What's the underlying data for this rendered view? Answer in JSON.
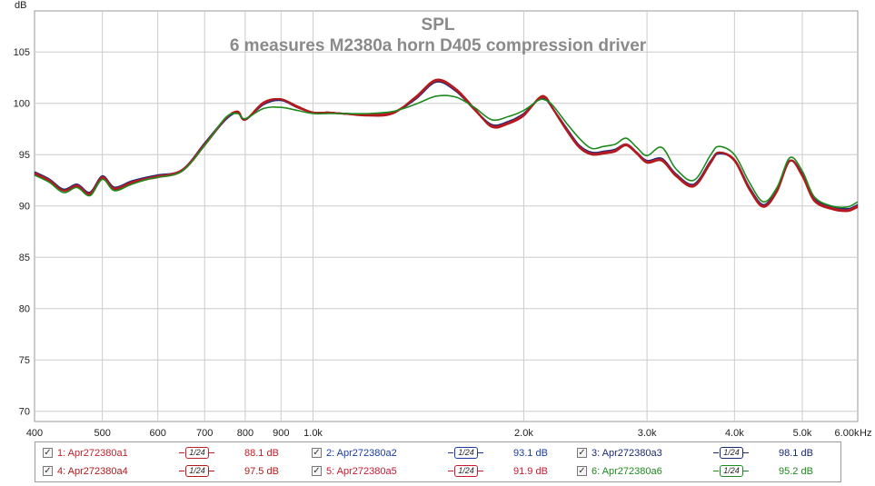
{
  "chart_data": {
    "type": "line",
    "title": "SPL",
    "subtitle": "6 measures M2380a horn D405 compression driver",
    "ylabel": "dB",
    "xunit": "Hz",
    "xscale": "log",
    "xlim": [
      400,
      6000
    ],
    "ylim": [
      69,
      109
    ],
    "grid": true,
    "x_ticks": [
      {
        "value": 400,
        "label": "400"
      },
      {
        "value": 500,
        "label": "500"
      },
      {
        "value": 600,
        "label": "600"
      },
      {
        "value": 700,
        "label": "700"
      },
      {
        "value": 800,
        "label": "800"
      },
      {
        "value": 900,
        "label": "900"
      },
      {
        "value": 1000,
        "label": "1.0k"
      },
      {
        "value": 2000,
        "label": "2.0k"
      },
      {
        "value": 3000,
        "label": "3.0k"
      },
      {
        "value": 4000,
        "label": "4.0k"
      },
      {
        "value": 5000,
        "label": "5.0k"
      },
      {
        "value": 6000,
        "label": "6.00k"
      }
    ],
    "y_ticks": [
      70,
      75,
      80,
      85,
      90,
      95,
      100,
      105
    ],
    "x": [
      400,
      420,
      440,
      460,
      480,
      500,
      520,
      550,
      580,
      600,
      650,
      700,
      750,
      780,
      800,
      850,
      900,
      950,
      1000,
      1050,
      1100,
      1200,
      1300,
      1400,
      1500,
      1600,
      1700,
      1800,
      1900,
      2000,
      2100,
      2150,
      2200,
      2300,
      2400,
      2500,
      2600,
      2700,
      2800,
      2900,
      3000,
      3150,
      3300,
      3500,
      3700,
      3800,
      4000,
      4200,
      4400,
      4600,
      4800,
      5000,
      5200,
      5500,
      5800,
      6000
    ],
    "series": [
      {
        "name": "1: Apr272380a1",
        "legend_value": "88.1 dB",
        "color": "#c0202a",
        "values": [
          93.2,
          92.5,
          91.5,
          92.0,
          91.2,
          92.8,
          91.7,
          92.3,
          92.7,
          92.9,
          93.5,
          96.0,
          98.5,
          99.2,
          98.4,
          100.0,
          100.4,
          99.6,
          99.1,
          99.1,
          99.0,
          98.9,
          99.1,
          100.5,
          102.2,
          101.3,
          99.4,
          97.8,
          98.1,
          98.9,
          100.4,
          100.5,
          99.5,
          97.5,
          95.8,
          95.1,
          95.2,
          95.4,
          96.0,
          95.2,
          94.3,
          94.5,
          93.0,
          92.0,
          94.3,
          95.2,
          94.5,
          91.7,
          90.0,
          91.5,
          94.4,
          93.0,
          90.6,
          89.8,
          89.6,
          90.0
        ]
      },
      {
        "name": "2: Apr272380a2",
        "legend_value": "93.1 dB",
        "color": "#1a3aa0",
        "values": [
          93.2,
          92.5,
          91.6,
          92.0,
          91.3,
          92.8,
          91.8,
          92.3,
          92.7,
          92.9,
          93.5,
          96.0,
          98.4,
          99.1,
          98.4,
          99.9,
          100.3,
          99.6,
          99.1,
          99.1,
          99.0,
          98.9,
          99.1,
          100.4,
          102.1,
          101.2,
          99.4,
          97.9,
          98.1,
          98.9,
          100.4,
          100.4,
          99.5,
          97.5,
          95.8,
          95.2,
          95.2,
          95.4,
          96.0,
          95.2,
          94.3,
          94.6,
          93.0,
          92.1,
          94.3,
          95.1,
          94.5,
          91.8,
          90.1,
          91.6,
          94.4,
          93.0,
          90.7,
          89.9,
          89.7,
          90.0
        ]
      },
      {
        "name": "3: Apr272380a3",
        "legend_value": "98.1 dB",
        "color": "#1a2a70",
        "values": [
          93.3,
          92.6,
          91.6,
          92.1,
          91.3,
          92.9,
          91.8,
          92.4,
          92.8,
          93.0,
          93.5,
          96.1,
          98.5,
          99.1,
          98.4,
          99.9,
          100.3,
          99.6,
          99.1,
          99.1,
          99.0,
          98.9,
          99.1,
          100.4,
          102.1,
          101.2,
          99.4,
          97.9,
          98.2,
          99.0,
          100.4,
          100.4,
          99.5,
          97.6,
          95.9,
          95.2,
          95.3,
          95.5,
          96.0,
          95.2,
          94.4,
          94.6,
          93.1,
          92.1,
          94.4,
          95.2,
          94.5,
          91.8,
          90.1,
          91.6,
          94.4,
          93.1,
          90.7,
          89.9,
          89.7,
          90.1
        ]
      },
      {
        "name": "4: Apr272380a4",
        "legend_value": "97.5 dB",
        "color": "#b01a1a",
        "values": [
          93.1,
          92.4,
          91.5,
          91.9,
          91.1,
          92.7,
          91.6,
          92.2,
          92.6,
          92.8,
          93.4,
          95.9,
          98.5,
          99.2,
          98.4,
          100.1,
          100.4,
          99.7,
          99.1,
          99.1,
          99.0,
          98.8,
          99.0,
          100.6,
          102.3,
          101.4,
          99.5,
          97.7,
          98.0,
          98.8,
          100.5,
          100.6,
          99.5,
          97.4,
          95.7,
          95.0,
          95.1,
          95.3,
          95.9,
          95.1,
          94.2,
          94.4,
          92.9,
          91.9,
          94.2,
          95.2,
          94.4,
          91.6,
          89.9,
          91.4,
          94.4,
          92.9,
          90.5,
          89.7,
          89.5,
          89.9
        ]
      },
      {
        "name": "5: Apr272380a5",
        "legend_value": "91.9 dB",
        "color": "#c81830",
        "values": [
          93.2,
          92.5,
          91.5,
          92.0,
          91.2,
          92.8,
          91.7,
          92.3,
          92.7,
          92.9,
          93.5,
          96.0,
          98.5,
          99.2,
          98.4,
          100.0,
          100.4,
          99.6,
          99.1,
          99.1,
          99.0,
          98.9,
          99.1,
          100.5,
          102.2,
          101.3,
          99.4,
          97.8,
          98.1,
          98.9,
          100.4,
          100.5,
          99.5,
          97.5,
          95.8,
          95.1,
          95.2,
          95.4,
          96.0,
          95.2,
          94.3,
          94.5,
          93.0,
          92.0,
          94.3,
          95.2,
          94.5,
          91.7,
          90.0,
          91.5,
          94.4,
          93.0,
          90.6,
          89.8,
          89.6,
          90.0
        ]
      },
      {
        "name": "6: Apr272380a6",
        "legend_value": "95.2 dB",
        "color": "#1e8a1e",
        "values": [
          93.0,
          92.3,
          91.3,
          91.8,
          91.0,
          92.6,
          91.5,
          92.1,
          92.6,
          92.8,
          93.4,
          95.9,
          98.6,
          99.0,
          98.5,
          99.5,
          99.6,
          99.3,
          99.0,
          99.0,
          99.0,
          99.0,
          99.2,
          99.9,
          100.7,
          100.6,
          99.6,
          98.4,
          98.7,
          99.3,
          100.3,
          100.3,
          99.8,
          98.1,
          96.6,
          95.6,
          95.8,
          96.0,
          96.6,
          95.7,
          94.9,
          95.7,
          93.6,
          92.5,
          95.0,
          95.8,
          95.0,
          92.3,
          90.4,
          91.8,
          94.7,
          93.4,
          90.9,
          90.0,
          89.9,
          90.4
        ]
      }
    ],
    "legend": {
      "placement": "bottom",
      "smoothing_label": "1/24",
      "checked": true
    }
  }
}
